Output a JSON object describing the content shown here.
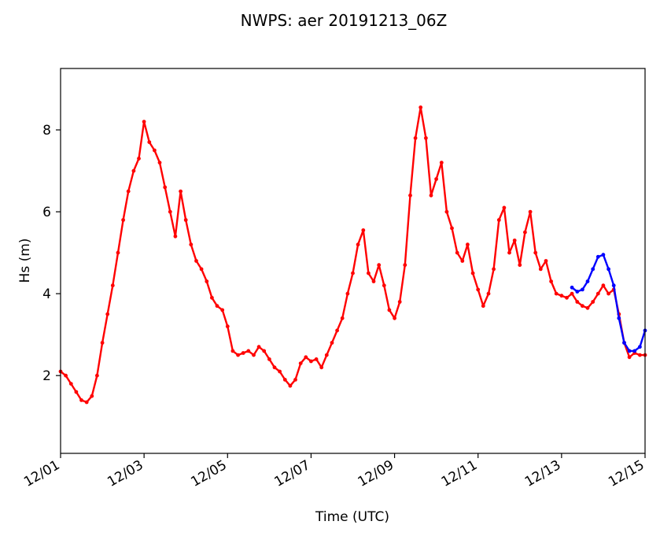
{
  "chart_data": {
    "type": "line",
    "title": "NWPS: aer 20191213_06Z",
    "xlabel": "Time (UTC)",
    "ylabel": "Hs (m)",
    "xlim": [
      "2019-12-01T00:00",
      "2019-12-15T00:00"
    ],
    "ylim": [
      0.1,
      9.5
    ],
    "grid": false,
    "x_ticks": [
      "12/01",
      "12/03",
      "12/05",
      "12/07",
      "12/09",
      "12/11",
      "12/13",
      "12/15"
    ],
    "x_tick_dates": [
      "2019-12-01T00:00",
      "2019-12-03T00:00",
      "2019-12-05T00:00",
      "2019-12-07T00:00",
      "2019-12-09T00:00",
      "2019-12-11T00:00",
      "2019-12-13T00:00",
      "2019-12-15T00:00"
    ],
    "y_ticks": [
      2,
      4,
      6,
      8
    ],
    "series": [
      {
        "color": "#ff0000",
        "points": [
          [
            "2019-12-01T00:00",
            2.1
          ],
          [
            "2019-12-01T03:00",
            2.0
          ],
          [
            "2019-12-01T06:00",
            1.8
          ],
          [
            "2019-12-01T09:00",
            1.6
          ],
          [
            "2019-12-01T12:00",
            1.4
          ],
          [
            "2019-12-01T15:00",
            1.35
          ],
          [
            "2019-12-01T18:00",
            1.5
          ],
          [
            "2019-12-01T21:00",
            2.0
          ],
          [
            "2019-12-02T00:00",
            2.8
          ],
          [
            "2019-12-02T03:00",
            3.5
          ],
          [
            "2019-12-02T06:00",
            4.2
          ],
          [
            "2019-12-02T09:00",
            5.0
          ],
          [
            "2019-12-02T12:00",
            5.8
          ],
          [
            "2019-12-02T15:00",
            6.5
          ],
          [
            "2019-12-02T18:00",
            7.0
          ],
          [
            "2019-12-02T21:00",
            7.3
          ],
          [
            "2019-12-03T00:00",
            8.2
          ],
          [
            "2019-12-03T03:00",
            7.7
          ],
          [
            "2019-12-03T06:00",
            7.5
          ],
          [
            "2019-12-03T09:00",
            7.2
          ],
          [
            "2019-12-03T12:00",
            6.6
          ],
          [
            "2019-12-03T15:00",
            6.0
          ],
          [
            "2019-12-03T18:00",
            5.4
          ],
          [
            "2019-12-03T21:00",
            6.5
          ],
          [
            "2019-12-04T00:00",
            5.8
          ],
          [
            "2019-12-04T03:00",
            5.2
          ],
          [
            "2019-12-04T06:00",
            4.8
          ],
          [
            "2019-12-04T09:00",
            4.6
          ],
          [
            "2019-12-04T12:00",
            4.3
          ],
          [
            "2019-12-04T15:00",
            3.9
          ],
          [
            "2019-12-04T18:00",
            3.7
          ],
          [
            "2019-12-04T21:00",
            3.6
          ],
          [
            "2019-12-05T00:00",
            3.2
          ],
          [
            "2019-12-05T03:00",
            2.6
          ],
          [
            "2019-12-05T06:00",
            2.5
          ],
          [
            "2019-12-05T09:00",
            2.55
          ],
          [
            "2019-12-05T12:00",
            2.6
          ],
          [
            "2019-12-05T15:00",
            2.5
          ],
          [
            "2019-12-05T18:00",
            2.7
          ],
          [
            "2019-12-05T21:00",
            2.6
          ],
          [
            "2019-12-06T00:00",
            2.4
          ],
          [
            "2019-12-06T03:00",
            2.2
          ],
          [
            "2019-12-06T06:00",
            2.1
          ],
          [
            "2019-12-06T09:00",
            1.9
          ],
          [
            "2019-12-06T12:00",
            1.75
          ],
          [
            "2019-12-06T15:00",
            1.9
          ],
          [
            "2019-12-06T18:00",
            2.3
          ],
          [
            "2019-12-06T21:00",
            2.45
          ],
          [
            "2019-12-07T00:00",
            2.35
          ],
          [
            "2019-12-07T03:00",
            2.4
          ],
          [
            "2019-12-07T06:00",
            2.2
          ],
          [
            "2019-12-07T09:00",
            2.5
          ],
          [
            "2019-12-07T12:00",
            2.8
          ],
          [
            "2019-12-07T15:00",
            3.1
          ],
          [
            "2019-12-07T18:00",
            3.4
          ],
          [
            "2019-12-07T21:00",
            4.0
          ],
          [
            "2019-12-08T00:00",
            4.5
          ],
          [
            "2019-12-08T03:00",
            5.2
          ],
          [
            "2019-12-08T06:00",
            5.55
          ],
          [
            "2019-12-08T09:00",
            4.5
          ],
          [
            "2019-12-08T12:00",
            4.3
          ],
          [
            "2019-12-08T15:00",
            4.7
          ],
          [
            "2019-12-08T18:00",
            4.2
          ],
          [
            "2019-12-08T21:00",
            3.6
          ],
          [
            "2019-12-09T00:00",
            3.4
          ],
          [
            "2019-12-09T03:00",
            3.8
          ],
          [
            "2019-12-09T06:00",
            4.7
          ],
          [
            "2019-12-09T09:00",
            6.4
          ],
          [
            "2019-12-09T12:00",
            7.8
          ],
          [
            "2019-12-09T15:00",
            8.55
          ],
          [
            "2019-12-09T18:00",
            7.8
          ],
          [
            "2019-12-09T21:00",
            6.4
          ],
          [
            "2019-12-10T00:00",
            6.8
          ],
          [
            "2019-12-10T03:00",
            7.2
          ],
          [
            "2019-12-10T06:00",
            6.0
          ],
          [
            "2019-12-10T09:00",
            5.6
          ],
          [
            "2019-12-10T12:00",
            5.0
          ],
          [
            "2019-12-10T15:00",
            4.8
          ],
          [
            "2019-12-10T18:00",
            5.2
          ],
          [
            "2019-12-10T21:00",
            4.5
          ],
          [
            "2019-12-11T00:00",
            4.1
          ],
          [
            "2019-12-11T03:00",
            3.7
          ],
          [
            "2019-12-11T06:00",
            4.0
          ],
          [
            "2019-12-11T09:00",
            4.6
          ],
          [
            "2019-12-11T12:00",
            5.8
          ],
          [
            "2019-12-11T15:00",
            6.1
          ],
          [
            "2019-12-11T18:00",
            5.0
          ],
          [
            "2019-12-11T21:00",
            5.3
          ],
          [
            "2019-12-12T00:00",
            4.7
          ],
          [
            "2019-12-12T03:00",
            5.5
          ],
          [
            "2019-12-12T06:00",
            6.0
          ],
          [
            "2019-12-12T09:00",
            5.0
          ],
          [
            "2019-12-12T12:00",
            4.6
          ],
          [
            "2019-12-12T15:00",
            4.8
          ],
          [
            "2019-12-12T18:00",
            4.3
          ],
          [
            "2019-12-12T21:00",
            4.0
          ],
          [
            "2019-12-13T00:00",
            3.95
          ],
          [
            "2019-12-13T03:00",
            3.9
          ],
          [
            "2019-12-13T06:00",
            4.0
          ],
          [
            "2019-12-13T09:00",
            3.8
          ],
          [
            "2019-12-13T12:00",
            3.7
          ],
          [
            "2019-12-13T15:00",
            3.65
          ],
          [
            "2019-12-13T18:00",
            3.8
          ],
          [
            "2019-12-13T21:00",
            4.0
          ],
          [
            "2019-12-14T00:00",
            4.2
          ],
          [
            "2019-12-14T03:00",
            4.0
          ],
          [
            "2019-12-14T06:00",
            4.1
          ],
          [
            "2019-12-14T09:00",
            3.5
          ],
          [
            "2019-12-14T12:00",
            2.8
          ],
          [
            "2019-12-14T15:00",
            2.45
          ],
          [
            "2019-12-14T18:00",
            2.55
          ],
          [
            "2019-12-14T21:00",
            2.5
          ],
          [
            "2019-12-15T00:00",
            2.5
          ]
        ]
      },
      {
        "color": "#0000ff",
        "points": [
          [
            "2019-12-13T06:00",
            4.15
          ],
          [
            "2019-12-13T09:00",
            4.05
          ],
          [
            "2019-12-13T12:00",
            4.1
          ],
          [
            "2019-12-13T15:00",
            4.3
          ],
          [
            "2019-12-13T18:00",
            4.6
          ],
          [
            "2019-12-13T21:00",
            4.9
          ],
          [
            "2019-12-14T00:00",
            4.95
          ],
          [
            "2019-12-14T03:00",
            4.6
          ],
          [
            "2019-12-14T06:00",
            4.2
          ],
          [
            "2019-12-14T09:00",
            3.4
          ],
          [
            "2019-12-14T12:00",
            2.8
          ],
          [
            "2019-12-14T15:00",
            2.6
          ],
          [
            "2019-12-14T18:00",
            2.6
          ],
          [
            "2019-12-14T21:00",
            2.7
          ],
          [
            "2019-12-15T00:00",
            3.1
          ]
        ]
      }
    ]
  }
}
